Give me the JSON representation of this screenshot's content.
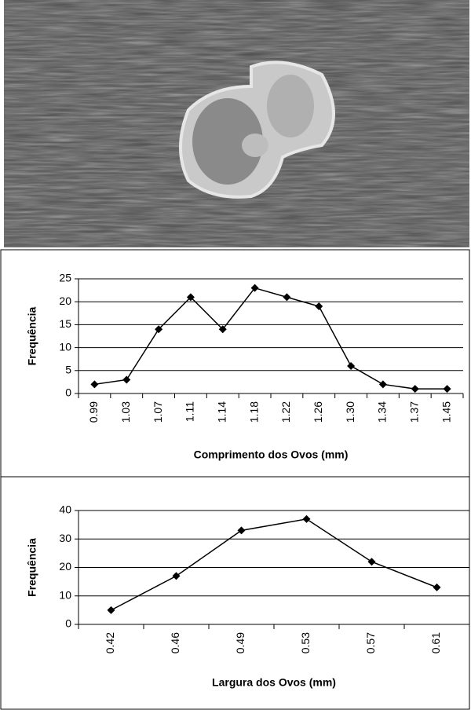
{
  "chart_data": [
    {
      "type": "line",
      "xlabel": "Comprimento dos Ovos (mm)",
      "ylabel": "Frequência",
      "categories": [
        "0.99",
        "1.03",
        "1.07",
        "1.11",
        "1.14",
        "1.18",
        "1.22",
        "1.26",
        "1.30",
        "1.34",
        "1.37",
        "1.45"
      ],
      "values": [
        2,
        3,
        14,
        21,
        14,
        23,
        21,
        19,
        6,
        2,
        1,
        1
      ],
      "color": "#000000",
      "ylim": [
        0,
        25
      ],
      "yticks": [
        0,
        5,
        10,
        15,
        20,
        25
      ],
      "grid": true
    },
    {
      "type": "line",
      "xlabel": "Largura dos Ovos (mm)",
      "ylabel": "Frequência",
      "categories": [
        "0.42",
        "0.46",
        "0.49",
        "0.53",
        "0.57",
        "0.61"
      ],
      "values": [
        5,
        17,
        33,
        37,
        22,
        13
      ],
      "color": "#000000",
      "ylim": [
        0,
        40
      ],
      "yticks": [
        0,
        10,
        20,
        30,
        40
      ],
      "grid": true
    }
  ]
}
